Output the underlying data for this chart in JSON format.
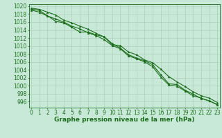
{
  "xlabel": "Graphe pression niveau de la mer (hPa)",
  "x": [
    0,
    1,
    2,
    3,
    4,
    5,
    6,
    7,
    8,
    9,
    10,
    11,
    12,
    13,
    14,
    15,
    16,
    17,
    18,
    19,
    20,
    21,
    22,
    23
  ],
  "line1": [
    1019.5,
    1019.2,
    1018.5,
    1017.8,
    1016.5,
    1015.8,
    1015.0,
    1014.2,
    1013.2,
    1012.3,
    1010.3,
    1010.1,
    1008.5,
    1007.8,
    1006.5,
    1005.8,
    1004.2,
    1002.3,
    1001.0,
    999.8,
    998.5,
    997.5,
    996.9,
    995.8
  ],
  "line2": [
    1019.3,
    1018.9,
    1017.6,
    1016.2,
    1015.8,
    1014.7,
    1013.5,
    1013.5,
    1012.8,
    1012.3,
    1010.6,
    1009.5,
    1007.8,
    1007.0,
    1006.3,
    1005.3,
    1002.8,
    1000.5,
    1000.3,
    998.9,
    997.9,
    996.8,
    996.2,
    995.3
  ],
  "line3": [
    1019.0,
    1018.5,
    1017.5,
    1016.8,
    1016.0,
    1015.0,
    1014.3,
    1013.3,
    1012.6,
    1011.6,
    1010.1,
    1009.3,
    1007.5,
    1006.8,
    1006.0,
    1004.8,
    1002.2,
    1000.2,
    999.9,
    998.7,
    997.5,
    996.9,
    996.2,
    995.2
  ],
  "ylim_min": 994.5,
  "ylim_max": 1020.5,
  "yticks": [
    996,
    998,
    1000,
    1002,
    1004,
    1006,
    1008,
    1010,
    1012,
    1014,
    1016,
    1018,
    1020
  ],
  "xticks": [
    0,
    1,
    2,
    3,
    4,
    5,
    6,
    7,
    8,
    9,
    10,
    11,
    12,
    13,
    14,
    15,
    16,
    17,
    18,
    19,
    20,
    21,
    22,
    23
  ],
  "line_color": "#1a6e1a",
  "bg_color": "#c8e8d8",
  "grid_color": "#a8c8b4",
  "text_color": "#1a6e1a",
  "label_fontsize": 6.5,
  "tick_fontsize": 5.5,
  "linewidth": 0.8
}
